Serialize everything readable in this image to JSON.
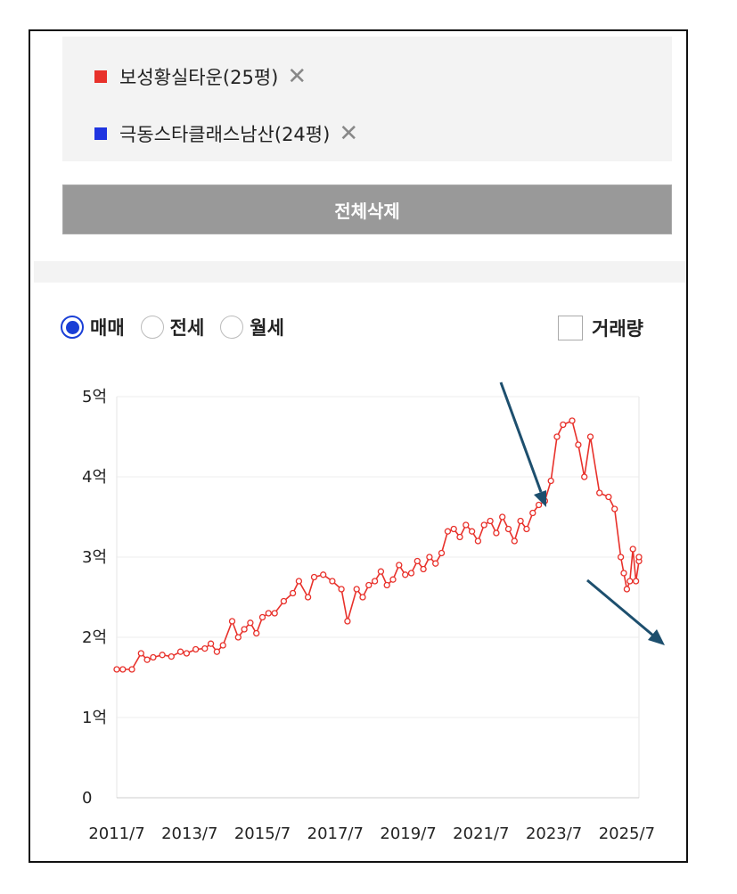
{
  "comparison": {
    "items": [
      {
        "label": "보성황실타운(25평)",
        "color": "#e8312b",
        "remove_icon": "close-icon",
        "remove_glyph": "✕"
      },
      {
        "label": "극동스타클래스남산(24평)",
        "color": "#1f34e0",
        "remove_icon": "close-icon",
        "remove_glyph": "✕"
      }
    ],
    "delete_all_label": "전체삭제"
  },
  "filters": {
    "trade_types": [
      {
        "label": "매매",
        "selected": true
      },
      {
        "label": "전세",
        "selected": false
      },
      {
        "label": "월세",
        "selected": false
      }
    ],
    "volume_label": "거래량",
    "volume_checked": false
  },
  "chart_data": {
    "type": "line",
    "x_domain": [
      "2011-07",
      "2025-11"
    ],
    "x_ticks": [
      "2011/7",
      "2013/7",
      "2015/7",
      "2017/7",
      "2019/7",
      "2021/7",
      "2023/7",
      "2025/7"
    ],
    "y_ticks": [
      {
        "value": 0,
        "label": "0"
      },
      {
        "value": 1,
        "label": "1억"
      },
      {
        "value": 2,
        "label": "2억"
      },
      {
        "value": 3,
        "label": "3억"
      },
      {
        "value": 4,
        "label": "4억"
      },
      {
        "value": 5,
        "label": "5억"
      }
    ],
    "ylim": [
      0,
      5
    ],
    "grid": true,
    "series": [
      {
        "name": "보성황실타운(25평)",
        "color": "#e8312b",
        "points": [
          [
            "2011-07",
            1.6
          ],
          [
            "2011-09",
            1.6
          ],
          [
            "2011-12",
            1.6
          ],
          [
            "2012-03",
            1.8
          ],
          [
            "2012-05",
            1.72
          ],
          [
            "2012-07",
            1.75
          ],
          [
            "2012-10",
            1.78
          ],
          [
            "2013-01",
            1.76
          ],
          [
            "2013-04",
            1.82
          ],
          [
            "2013-06",
            1.8
          ],
          [
            "2013-09",
            1.85
          ],
          [
            "2013-12",
            1.86
          ],
          [
            "2014-02",
            1.92
          ],
          [
            "2014-04",
            1.82
          ],
          [
            "2014-06",
            1.9
          ],
          [
            "2014-09",
            2.2
          ],
          [
            "2014-11",
            2.0
          ],
          [
            "2015-01",
            2.1
          ],
          [
            "2015-03",
            2.18
          ],
          [
            "2015-05",
            2.05
          ],
          [
            "2015-07",
            2.25
          ],
          [
            "2015-09",
            2.3
          ],
          [
            "2015-11",
            2.3
          ],
          [
            "2016-02",
            2.45
          ],
          [
            "2016-05",
            2.55
          ],
          [
            "2016-07",
            2.7
          ],
          [
            "2016-10",
            2.5
          ],
          [
            "2016-12",
            2.75
          ],
          [
            "2017-03",
            2.78
          ],
          [
            "2017-06",
            2.7
          ],
          [
            "2017-09",
            2.6
          ],
          [
            "2017-11",
            2.2
          ],
          [
            "2018-02",
            2.6
          ],
          [
            "2018-04",
            2.5
          ],
          [
            "2018-06",
            2.65
          ],
          [
            "2018-08",
            2.7
          ],
          [
            "2018-10",
            2.82
          ],
          [
            "2018-12",
            2.65
          ],
          [
            "2019-02",
            2.72
          ],
          [
            "2019-04",
            2.9
          ],
          [
            "2019-06",
            2.78
          ],
          [
            "2019-08",
            2.8
          ],
          [
            "2019-10",
            2.95
          ],
          [
            "2019-12",
            2.85
          ],
          [
            "2020-02",
            3.0
          ],
          [
            "2020-04",
            2.92
          ],
          [
            "2020-06",
            3.05
          ],
          [
            "2020-08",
            3.32
          ],
          [
            "2020-10",
            3.35
          ],
          [
            "2020-12",
            3.25
          ],
          [
            "2021-02",
            3.4
          ],
          [
            "2021-04",
            3.32
          ],
          [
            "2021-06",
            3.2
          ],
          [
            "2021-08",
            3.4
          ],
          [
            "2021-10",
            3.45
          ],
          [
            "2021-12",
            3.3
          ],
          [
            "2022-02",
            3.5
          ],
          [
            "2022-04",
            3.35
          ],
          [
            "2022-06",
            3.2
          ],
          [
            "2022-08",
            3.45
          ],
          [
            "2022-10",
            3.35
          ],
          [
            "2022-12",
            3.55
          ],
          [
            "2023-02",
            3.65
          ],
          [
            "2023-04",
            3.7
          ],
          [
            "2023-06",
            3.95
          ],
          [
            "2023-08",
            4.5
          ],
          [
            "2023-10",
            4.65
          ],
          [
            "2024-01",
            4.7
          ],
          [
            "2024-03",
            4.4
          ],
          [
            "2024-05",
            4.0
          ],
          [
            "2024-07",
            4.5
          ],
          [
            "2024-10",
            3.8
          ],
          [
            "2025-01",
            3.75
          ],
          [
            "2025-03",
            3.6
          ],
          [
            "2025-05",
            3.0
          ],
          [
            "2025-06",
            2.8
          ],
          [
            "2025-07",
            2.6
          ],
          [
            "2025-08",
            2.7
          ],
          [
            "2025-09",
            3.1
          ],
          [
            "2025-10",
            2.7
          ],
          [
            "2025-11",
            2.95
          ],
          [
            "2025-11",
            3.0
          ]
        ]
      }
    ]
  }
}
